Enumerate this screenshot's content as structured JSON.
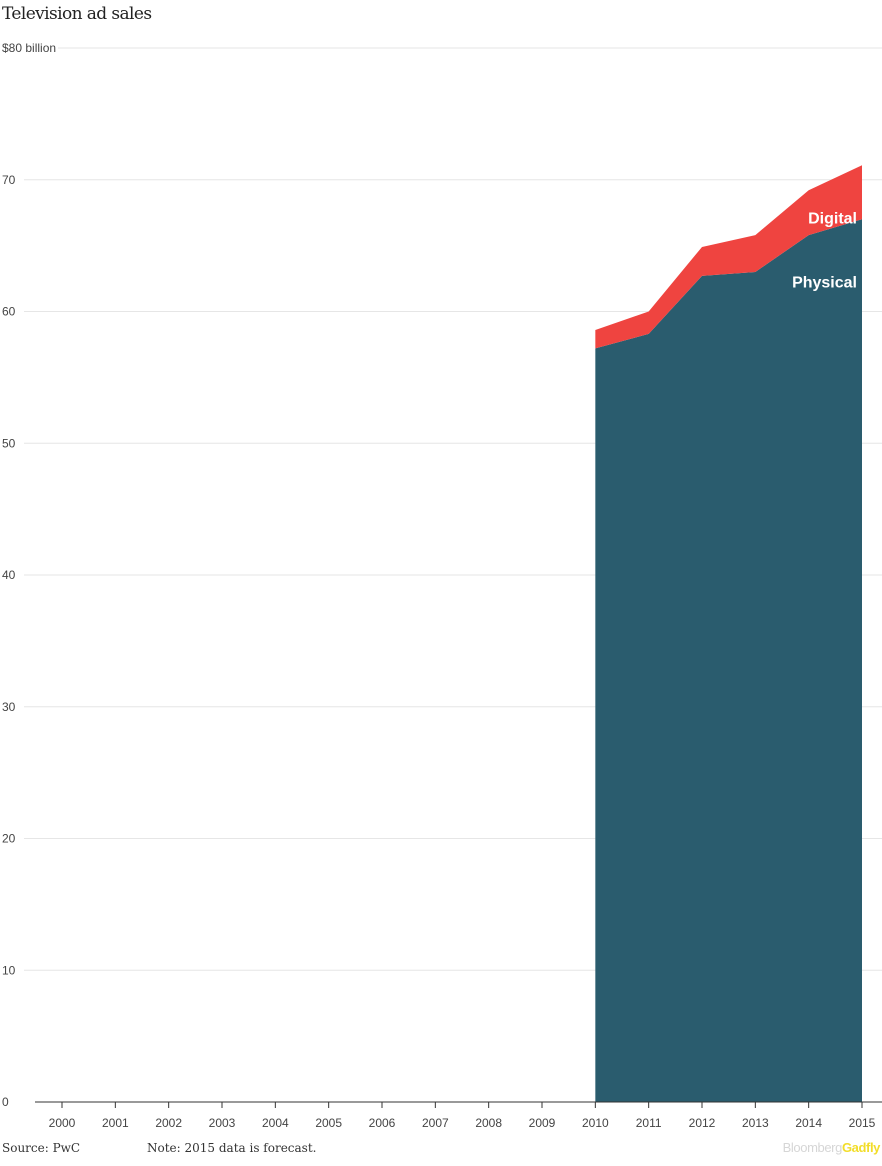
{
  "chart_data": {
    "type": "area",
    "title": "Television ad sales",
    "x": [
      "2000",
      "2001",
      "2002",
      "2003",
      "2004",
      "2005",
      "2006",
      "2007",
      "2008",
      "2009",
      "2010",
      "2011",
      "2012",
      "2013",
      "2014",
      "2015"
    ],
    "series": [
      {
        "name": "Physical",
        "color": "#2a5c6e",
        "values": [
          null,
          null,
          null,
          null,
          null,
          null,
          null,
          null,
          null,
          null,
          57.2,
          58.3,
          62.7,
          63.0,
          65.8,
          67.0
        ]
      },
      {
        "name": "Digital",
        "color": "#ef4440",
        "values": [
          null,
          null,
          null,
          null,
          null,
          null,
          null,
          null,
          null,
          null,
          1.4,
          1.7,
          2.2,
          2.8,
          3.4,
          4.1
        ]
      }
    ],
    "stacked": true,
    "ylim": [
      0,
      80
    ],
    "yticks": [
      "0",
      "10",
      "20",
      "30",
      "40",
      "50",
      "60",
      "70",
      "$80 billion"
    ],
    "ytick_values": [
      0,
      10,
      20,
      30,
      40,
      50,
      60,
      70,
      80
    ],
    "grid": true,
    "footer": {
      "source": "Source: PwC",
      "note": "Note: 2015 data is forecast."
    }
  },
  "brand": {
    "part1": "Bloomberg",
    "part2": "Gadfly"
  }
}
